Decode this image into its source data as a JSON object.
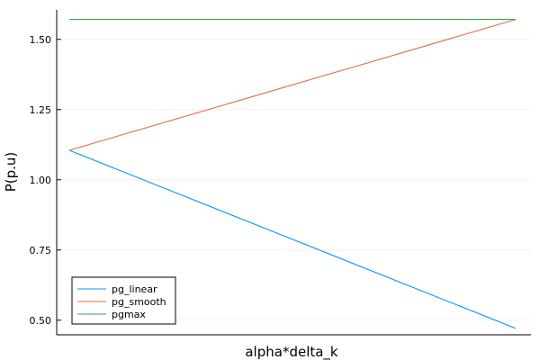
{
  "chart_data": {
    "type": "line",
    "xlabel": "alpha*delta_k",
    "ylabel": "P(p.u)",
    "x": [
      0,
      1
    ],
    "ylim": [
      0.448,
      1.605
    ],
    "yticks": [
      0.5,
      0.75,
      1.0,
      1.25,
      1.5
    ],
    "ytick_labels": [
      "0.50",
      "0.75",
      "1.00",
      "1.25",
      "1.50"
    ],
    "grid": true,
    "legend_position": "bottom-left",
    "series": [
      {
        "name": "pg_linear",
        "color": "#009AFA",
        "values": [
          1.105,
          0.471
        ]
      },
      {
        "name": "pg_smooth",
        "color": "#E26F46",
        "values": [
          1.105,
          1.571
        ]
      },
      {
        "name": "pgmax",
        "color": "#3EA44E",
        "values": [
          1.571,
          1.571
        ]
      }
    ]
  }
}
